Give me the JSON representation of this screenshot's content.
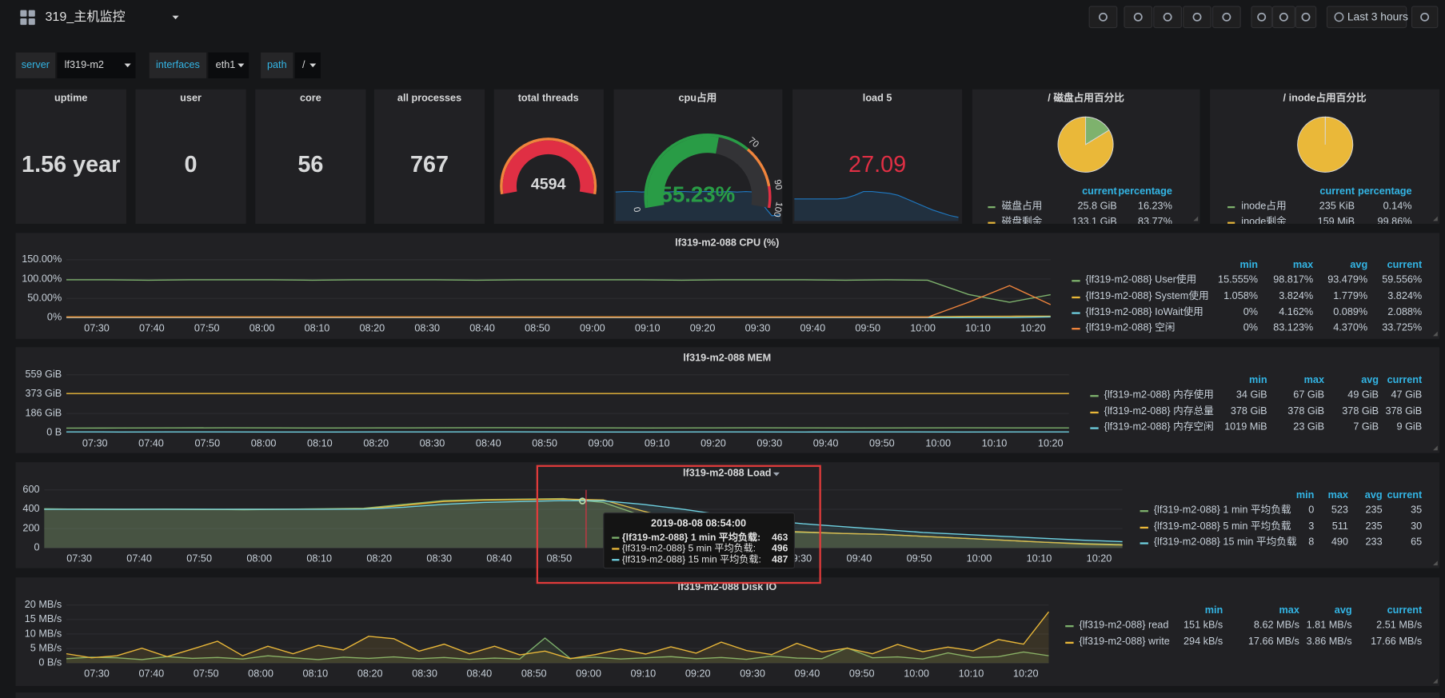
{
  "header": {
    "title": "319_主机监控",
    "time_range": "Last 3 hours"
  },
  "variables": [
    {
      "label": "server",
      "value": "lf319-m2"
    },
    {
      "label": "interfaces",
      "value": "eth1"
    },
    {
      "label": "path",
      "value": "/"
    }
  ],
  "stats": [
    {
      "title": "uptime",
      "value": "1.56 year"
    },
    {
      "title": "user",
      "value": 0
    },
    {
      "title": "core",
      "value": 56
    },
    {
      "title": "all processes",
      "value": 767
    }
  ],
  "threads": {
    "title": "total threads",
    "value": 4594,
    "color": "#e02f44"
  },
  "cpu_gauge": {
    "title": "cpu占用",
    "value": 55.23,
    "value_label": "55.23%",
    "ticks": [
      0,
      70,
      90,
      100
    ],
    "colors": [
      "#299c46",
      "#ef843c",
      "#e02f44"
    ],
    "sparkline": [
      55,
      56,
      56,
      55,
      56,
      56,
      55,
      56,
      56,
      55,
      56,
      56,
      55,
      56,
      55,
      56,
      55,
      30,
      10,
      12
    ]
  },
  "load5": {
    "title": "load 5",
    "value": 27.09,
    "sparkline": [
      24,
      24,
      24,
      24,
      24,
      24,
      25,
      28,
      32,
      32,
      31,
      30,
      28,
      24,
      20,
      16,
      12,
      9,
      6,
      4
    ]
  },
  "pies": [
    {
      "title": "/ 磁盘占用百分比",
      "columns": [
        "current",
        "percentage"
      ],
      "rows": [
        {
          "name": "磁盘占用",
          "color": "#7eb26d",
          "current": "25.8 GiB",
          "value": 16.23,
          "percentage": "16.23%"
        },
        {
          "name": "磁盘剩余",
          "color": "#eab839",
          "current": "133.1 GiB",
          "value": 83.77,
          "percentage": "83.77%"
        }
      ]
    },
    {
      "title": "/ inode占用百分比",
      "columns": [
        "current",
        "percentage"
      ],
      "rows": [
        {
          "name": "inode占用",
          "color": "#7eb26d",
          "current": "235 KiB",
          "value": 0.14,
          "percentage": "0.14%"
        },
        {
          "name": "inode剩余",
          "color": "#eab839",
          "current": "159 MiB",
          "value": 99.86,
          "percentage": "99.86%"
        }
      ]
    }
  ],
  "graphs": [
    {
      "title": "lf319-m2-088 CPU (%)",
      "ylim": [
        0,
        150
      ],
      "yticks": [
        {
          "value": 0,
          "label": "0%"
        },
        {
          "value": 50,
          "label": "50.00%"
        },
        {
          "value": 100,
          "label": "100.00%"
        },
        {
          "value": 150,
          "label": "150.00%"
        }
      ],
      "xticks": [
        "07:30",
        "07:40",
        "07:50",
        "08:00",
        "08:10",
        "08:20",
        "08:30",
        "08:40",
        "08:50",
        "09:00",
        "09:10",
        "09:20",
        "09:30",
        "09:40",
        "09:50",
        "10:00",
        "10:10",
        "10:20"
      ],
      "columns": [
        "min",
        "max",
        "avg",
        "current"
      ],
      "series": [
        {
          "name": "{lf319-m2-088} User使用",
          "color": "#7eb26d",
          "stats": [
            "15.555%",
            "98.817%",
            "93.479%",
            "59.556%"
          ],
          "values": [
            98,
            98,
            97,
            98,
            98,
            98,
            97,
            98,
            98,
            98,
            97,
            98,
            98,
            98,
            98,
            97,
            98,
            98,
            98,
            97,
            98,
            97,
            60,
            40,
            59.556
          ]
        },
        {
          "name": "{lf319-m2-088} System使用",
          "color": "#eab839",
          "stats": [
            "1.058%",
            "3.824%",
            "1.779%",
            "3.824%"
          ],
          "values": [
            2,
            2,
            2,
            2,
            2,
            2,
            2,
            2,
            2,
            2,
            2,
            2,
            2,
            2,
            2,
            2,
            2,
            2,
            2,
            2,
            2,
            2,
            3.5,
            3.8,
            3.824
          ]
        },
        {
          "name": "{lf319-m2-088} IoWait使用",
          "color": "#6ed0e0",
          "stats": [
            "0%",
            "4.162%",
            "0.089%",
            "2.088%"
          ],
          "values": [
            0.1,
            0.1,
            0.1,
            0.1,
            0.1,
            0.1,
            0.1,
            0.1,
            0.1,
            0.1,
            0.1,
            0.1,
            0.1,
            0.1,
            0.1,
            0.1,
            0.1,
            0.1,
            0.1,
            0.1,
            0.1,
            0.1,
            0.1,
            0.1,
            2.088
          ]
        },
        {
          "name": "{lf319-m2-088} 空闲",
          "color": "#ef843c",
          "stats": [
            "0%",
            "83.123%",
            "4.370%",
            "33.725%"
          ],
          "values": [
            1.3,
            1.3,
            1.3,
            1.3,
            1.3,
            1.3,
            1.3,
            1.3,
            1.3,
            1.3,
            1.3,
            1.3,
            1.3,
            1.3,
            1.3,
            1.3,
            1.3,
            1.3,
            1.3,
            1.3,
            1.3,
            1.3,
            40,
            83,
            33.725
          ]
        }
      ]
    },
    {
      "title": "lf319-m2-088 MEM",
      "ylim": [
        0,
        559
      ],
      "yticks": [
        {
          "value": 0,
          "label": "0 B"
        },
        {
          "value": 186,
          "label": "186 GiB"
        },
        {
          "value": 373,
          "label": "373 GiB"
        },
        {
          "value": 559,
          "label": "559 GiB"
        }
      ],
      "xticks": [
        "07:30",
        "07:40",
        "07:50",
        "08:00",
        "08:10",
        "08:20",
        "08:30",
        "08:40",
        "08:50",
        "09:00",
        "09:10",
        "09:20",
        "09:30",
        "09:40",
        "09:50",
        "10:00",
        "10:10",
        "10:20"
      ],
      "columns": [
        "min",
        "max",
        "avg",
        "current"
      ],
      "series": [
        {
          "name": "{lf319-m2-088} 内存使用",
          "color": "#7eb26d",
          "stats": [
            "34 GiB",
            "67 GiB",
            "49 GiB",
            "47 GiB"
          ],
          "values": [
            45,
            46,
            47,
            48,
            47,
            46,
            47,
            48,
            49,
            48,
            47,
            46,
            47,
            48,
            47,
            46,
            47,
            48,
            47,
            47
          ]
        },
        {
          "name": "{lf319-m2-088} 内存总量",
          "color": "#eab839",
          "stats": [
            "378 GiB",
            "378 GiB",
            "378 GiB",
            "378 GiB"
          ],
          "values": [
            378,
            378,
            378,
            378,
            378,
            378,
            378,
            378,
            378,
            378,
            378,
            378,
            378,
            378,
            378,
            378,
            378,
            378,
            378,
            378
          ]
        },
        {
          "name": "{lf319-m2-088} 内存空闲",
          "color": "#6ed0e0",
          "stats": [
            "1019 MiB",
            "23 GiB",
            "7 GiB",
            "9 GiB"
          ],
          "values": [
            9,
            8,
            9,
            9,
            8,
            8,
            9,
            9,
            10,
            9,
            8,
            8,
            9,
            9,
            8,
            9,
            9,
            8,
            9,
            9
          ]
        }
      ]
    },
    {
      "title": "lf319-m2-088 Load",
      "ylim": [
        0,
        600
      ],
      "yticks": [
        0,
        200,
        400,
        600
      ],
      "xticks": [
        "07:30",
        "07:40",
        "07:50",
        "08:00",
        "08:10",
        "08:20",
        "08:30",
        "08:40",
        "08:50",
        "09:00",
        "09:10",
        "09:20",
        "09:30",
        "09:40",
        "09:50",
        "10:00",
        "10:10",
        "10:20"
      ],
      "columns": [
        "min",
        "max",
        "avg",
        "current"
      ],
      "series": [
        {
          "name": "{lf319-m2-088} 1 min 平均负载",
          "color": "#7eb26d",
          "stats": [
            "0",
            "523",
            "235",
            "35"
          ],
          "values": [
            405,
            400,
            398,
            402,
            400,
            395,
            400,
            405,
            410,
            450,
            490,
            500,
            505,
            510,
            470,
            330,
            250,
            200,
            170,
            160,
            150,
            140,
            120,
            100,
            80,
            60,
            45,
            35
          ]
        },
        {
          "name": "{lf319-m2-088} 5 min 平均负载",
          "color": "#eab839",
          "stats": [
            "3",
            "511",
            "235",
            "30"
          ],
          "values": [
            400,
            402,
            400,
            400,
            398,
            400,
            400,
            402,
            405,
            440,
            480,
            495,
            500,
            505,
            496,
            380,
            280,
            220,
            180,
            165,
            150,
            140,
            120,
            100,
            80,
            60,
            40,
            30
          ]
        },
        {
          "name": "{lf319-m2-088} 15 min 平均负载",
          "color": "#6ed0e0",
          "stats": [
            "8",
            "490",
            "233",
            "65"
          ],
          "values": [
            400,
            400,
            400,
            400,
            400,
            400,
            400,
            400,
            402,
            420,
            450,
            470,
            480,
            490,
            487,
            450,
            400,
            340,
            290,
            250,
            220,
            190,
            160,
            140,
            120,
            100,
            80,
            65
          ]
        }
      ]
    },
    {
      "title": "lf319-m2-088 Disk IO",
      "ylim": [
        0,
        20
      ],
      "yticks": [
        {
          "value": 0,
          "label": "0 B/s"
        },
        {
          "value": 5,
          "label": "5 MB/s"
        },
        {
          "value": 10,
          "label": "10 MB/s"
        },
        {
          "value": 15,
          "label": "15 MB/s"
        },
        {
          "value": 20,
          "label": "20 MB/s"
        }
      ],
      "xticks": [
        "07:30",
        "07:40",
        "07:50",
        "08:00",
        "08:10",
        "08:20",
        "08:30",
        "08:40",
        "08:50",
        "09:00",
        "09:10",
        "09:20",
        "09:30",
        "09:40",
        "09:50",
        "10:00",
        "10:10",
        "10:20"
      ],
      "columns": [
        "min",
        "max",
        "avg",
        "current"
      ],
      "series": [
        {
          "name": "{lf319-m2-088} read",
          "color": "#7eb26d",
          "stats": [
            "151 kB/s",
            "8.62 MB/s",
            "1.81 MB/s",
            "2.51 MB/s"
          ],
          "values": [
            1.5,
            2,
            1.8,
            1.2,
            2.2,
            1.6,
            1.9,
            1.4,
            2.5,
            1.8,
            1.2,
            2,
            1.6,
            2.1,
            1.5,
            1.9,
            1.3,
            1.7,
            1.4,
            8.62,
            1.6,
            2,
            1.4,
            1.8,
            2.2,
            1.5,
            1.9,
            1.3,
            2.4,
            1.7,
            1.5,
            5.2,
            1.8,
            2.1,
            1.4,
            3.5,
            1.9,
            2.2,
            3.8,
            2.51
          ]
        },
        {
          "name": "{lf319-m2-088} write",
          "color": "#eab839",
          "stats": [
            "294 kB/s",
            "17.66 MB/s",
            "3.86 MB/s",
            "17.66 MB/s"
          ],
          "values": [
            3.2,
            1.8,
            2.5,
            5.1,
            2.2,
            4.8,
            7.5,
            2.5,
            5.8,
            3.2,
            6.1,
            4.5,
            9.2,
            8.4,
            4.1,
            6.5,
            3.2,
            5.8,
            2.8,
            4.1,
            1.5,
            2.9,
            4.8,
            3.1,
            5.6,
            3.4,
            7.2,
            4.3,
            2.9,
            6.8,
            3.8,
            5.1,
            3.2,
            6.4,
            3.9,
            5.5,
            4.2,
            8.1,
            6.5,
            17.66
          ]
        }
      ]
    }
  ],
  "tooltip": {
    "time": "2019-08-08 08:54:00",
    "rows": [
      {
        "name": "{lf319-m2-088} 1 min 平均负载:",
        "value": 463,
        "color": "#7eb26d"
      },
      {
        "name": "{lf319-m2-088} 5 min 平均负载:",
        "value": 496,
        "color": "#eab839"
      },
      {
        "name": "{lf319-m2-088} 15 min 平均负载:",
        "value": 487,
        "color": "#6ed0e0"
      }
    ]
  }
}
